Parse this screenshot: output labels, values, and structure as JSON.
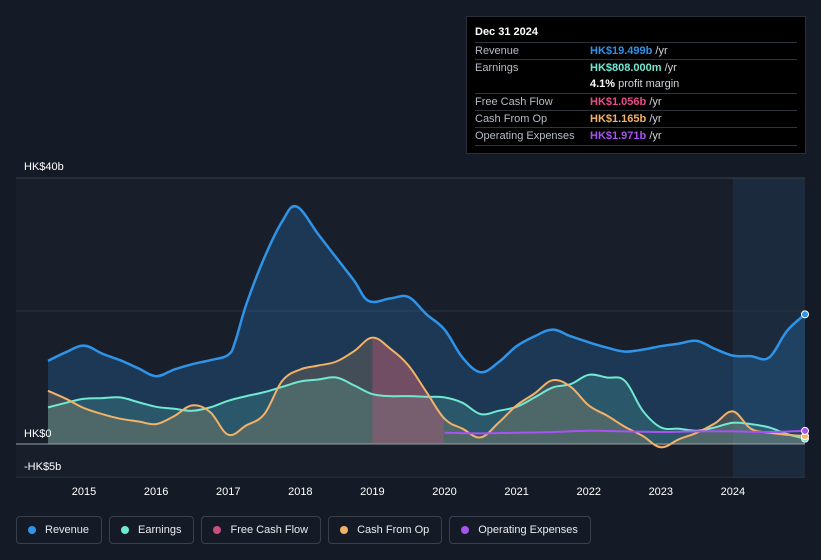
{
  "tooltip": {
    "date": "Dec 31 2024",
    "rows": [
      {
        "label": "Revenue",
        "value": "HK$19.499b",
        "unit": " /yr",
        "color": "#2f93e8"
      },
      {
        "label": "Earnings",
        "value": "HK$808.000m",
        "unit": " /yr",
        "color": "#70e8d2"
      },
      {
        "label": "",
        "value": "4.1%",
        "unit": " profit margin",
        "color": "#ffffff"
      },
      {
        "label": "Free Cash Flow",
        "value": "HK$1.056b",
        "unit": " /yr",
        "color": "#ea4c89"
      },
      {
        "label": "Cash From Op",
        "value": "HK$1.165b",
        "unit": " /yr",
        "color": "#f3b267"
      },
      {
        "label": "Operating Expenses",
        "value": "HK$1.971b",
        "unit": " /yr",
        "color": "#a752f1"
      }
    ]
  },
  "legend": [
    {
      "label": "Revenue",
      "color": "#2f93e8"
    },
    {
      "label": "Earnings",
      "color": "#70e8d2"
    },
    {
      "label": "Free Cash Flow",
      "color": "#c94f7c"
    },
    {
      "label": "Cash From Op",
      "color": "#f3b267"
    },
    {
      "label": "Operating Expenses",
      "color": "#a752f1"
    }
  ],
  "chart_data": {
    "type": "area",
    "title": "",
    "xlabel": "",
    "ylabel": "",
    "ylim": [
      -5,
      40
    ],
    "xlim": [
      2014.5,
      2025.0
    ],
    "y_tick_labels": [
      {
        "value": 40,
        "label": "HK$40b"
      },
      {
        "value": 0,
        "label": "HK$0"
      },
      {
        "value": -5,
        "label": "-HK$5b"
      }
    ],
    "x_tick_labels": [
      "2015",
      "2016",
      "2017",
      "2018",
      "2019",
      "2020",
      "2021",
      "2022",
      "2023",
      "2024"
    ],
    "highlight_from": 2024.0,
    "series": [
      {
        "name": "Revenue",
        "color": "#2f93e8",
        "points": [
          [
            2014.5,
            12.5
          ],
          [
            2014.75,
            13.8
          ],
          [
            2015.0,
            14.8
          ],
          [
            2015.25,
            13.6
          ],
          [
            2015.5,
            12.6
          ],
          [
            2015.75,
            11.4
          ],
          [
            2016.0,
            10.2
          ],
          [
            2016.25,
            11.2
          ],
          [
            2016.5,
            12.0
          ],
          [
            2016.75,
            12.6
          ],
          [
            2017.0,
            13.4
          ],
          [
            2017.1,
            15.5
          ],
          [
            2017.25,
            21
          ],
          [
            2017.5,
            28
          ],
          [
            2017.75,
            33.5
          ],
          [
            2017.95,
            35.7
          ],
          [
            2018.25,
            31.5
          ],
          [
            2018.5,
            28
          ],
          [
            2018.75,
            24.5
          ],
          [
            2018.95,
            21.5
          ],
          [
            2019.25,
            21.9
          ],
          [
            2019.5,
            22.1
          ],
          [
            2019.75,
            19.5
          ],
          [
            2020.0,
            17.2
          ],
          [
            2020.25,
            13
          ],
          [
            2020.5,
            10.8
          ],
          [
            2020.75,
            12.3
          ],
          [
            2021.0,
            14.7
          ],
          [
            2021.25,
            16.2
          ],
          [
            2021.5,
            17.2
          ],
          [
            2021.75,
            16.2
          ],
          [
            2022.0,
            15.3
          ],
          [
            2022.25,
            14.5
          ],
          [
            2022.5,
            13.9
          ],
          [
            2022.75,
            14.2
          ],
          [
            2023.0,
            14.7
          ],
          [
            2023.25,
            15.1
          ],
          [
            2023.5,
            15.5
          ],
          [
            2023.75,
            14.3
          ],
          [
            2024.0,
            13.3
          ],
          [
            2024.25,
            13.2
          ],
          [
            2024.5,
            13.0
          ],
          [
            2024.75,
            17
          ],
          [
            2025.0,
            19.5
          ]
        ]
      },
      {
        "name": "Earnings",
        "color": "#70e8d2",
        "points": [
          [
            2014.5,
            5.5
          ],
          [
            2014.75,
            6.2
          ],
          [
            2015.0,
            6.8
          ],
          [
            2015.25,
            6.9
          ],
          [
            2015.5,
            7.0
          ],
          [
            2015.75,
            6.3
          ],
          [
            2016.0,
            5.6
          ],
          [
            2016.25,
            5.3
          ],
          [
            2016.5,
            5.0
          ],
          [
            2016.75,
            5.5
          ],
          [
            2017.0,
            6.5
          ],
          [
            2017.25,
            7.2
          ],
          [
            2017.5,
            7.8
          ],
          [
            2017.75,
            8.6
          ],
          [
            2018.0,
            9.4
          ],
          [
            2018.25,
            9.7
          ],
          [
            2018.5,
            10.0
          ],
          [
            2018.75,
            8.8
          ],
          [
            2019.0,
            7.5
          ],
          [
            2019.25,
            7.2
          ],
          [
            2019.5,
            7.2
          ],
          [
            2019.75,
            7.1
          ],
          [
            2020.0,
            7.0
          ],
          [
            2020.25,
            6.2
          ],
          [
            2020.5,
            4.5
          ],
          [
            2020.75,
            5.0
          ],
          [
            2021.0,
            5.6
          ],
          [
            2021.25,
            7.0
          ],
          [
            2021.5,
            8.5
          ],
          [
            2021.75,
            9.0
          ],
          [
            2022.0,
            10.4
          ],
          [
            2022.25,
            10.0
          ],
          [
            2022.5,
            9.5
          ],
          [
            2022.75,
            5.0
          ],
          [
            2023.0,
            2.5
          ],
          [
            2023.25,
            2.3
          ],
          [
            2023.5,
            2.0
          ],
          [
            2023.75,
            2.5
          ],
          [
            2024.0,
            3.2
          ],
          [
            2024.25,
            3.0
          ],
          [
            2024.5,
            2.5
          ],
          [
            2024.75,
            1.5
          ],
          [
            2025.0,
            0.8
          ]
        ]
      },
      {
        "name": "Cash From Op",
        "color": "#f3b267",
        "points": [
          [
            2014.5,
            8.0
          ],
          [
            2014.75,
            6.8
          ],
          [
            2015.0,
            5.4
          ],
          [
            2015.25,
            4.5
          ],
          [
            2015.5,
            3.8
          ],
          [
            2015.75,
            3.4
          ],
          [
            2016.0,
            3.0
          ],
          [
            2016.25,
            4.2
          ],
          [
            2016.5,
            5.8
          ],
          [
            2016.75,
            4.8
          ],
          [
            2017.0,
            1.4
          ],
          [
            2017.25,
            2.8
          ],
          [
            2017.5,
            4.5
          ],
          [
            2017.75,
            9.5
          ],
          [
            2018.0,
            11.2
          ],
          [
            2018.25,
            11.8
          ],
          [
            2018.5,
            12.4
          ],
          [
            2018.75,
            14.0
          ],
          [
            2019.0,
            16.0
          ],
          [
            2019.25,
            14.3
          ],
          [
            2019.5,
            11.8
          ],
          [
            2019.75,
            7.8
          ],
          [
            2020.0,
            3.8
          ],
          [
            2020.25,
            2.3
          ],
          [
            2020.5,
            1.0
          ],
          [
            2020.75,
            3.2
          ],
          [
            2021.0,
            5.8
          ],
          [
            2021.25,
            7.6
          ],
          [
            2021.5,
            9.6
          ],
          [
            2021.75,
            8.6
          ],
          [
            2022.0,
            5.8
          ],
          [
            2022.25,
            4.3
          ],
          [
            2022.5,
            2.6
          ],
          [
            2022.75,
            1.2
          ],
          [
            2023.0,
            -0.5
          ],
          [
            2023.25,
            0.7
          ],
          [
            2023.5,
            1.7
          ],
          [
            2023.75,
            3.1
          ],
          [
            2024.0,
            4.9
          ],
          [
            2024.25,
            2.3
          ],
          [
            2024.5,
            1.7
          ],
          [
            2024.75,
            1.4
          ],
          [
            2025.0,
            1.2
          ]
        ]
      },
      {
        "name": "Free Cash Flow",
        "color": "#c94f7c",
        "points": [
          [
            2019.0,
            16.0
          ],
          [
            2019.25,
            14.3
          ],
          [
            2019.5,
            11.8
          ],
          [
            2019.75,
            7.8
          ],
          [
            2019.99,
            3.8
          ]
        ]
      },
      {
        "name": "Operating Expenses",
        "color": "#a752f1",
        "points": [
          [
            2020.0,
            1.7
          ],
          [
            2020.5,
            1.6
          ],
          [
            2021.0,
            1.7
          ],
          [
            2021.5,
            1.8
          ],
          [
            2022.0,
            2.0
          ],
          [
            2022.5,
            1.9
          ],
          [
            2023.0,
            1.8
          ],
          [
            2023.5,
            1.9
          ],
          [
            2024.0,
            1.9
          ],
          [
            2024.5,
            1.8
          ],
          [
            2025.0,
            1.97
          ]
        ]
      }
    ]
  }
}
